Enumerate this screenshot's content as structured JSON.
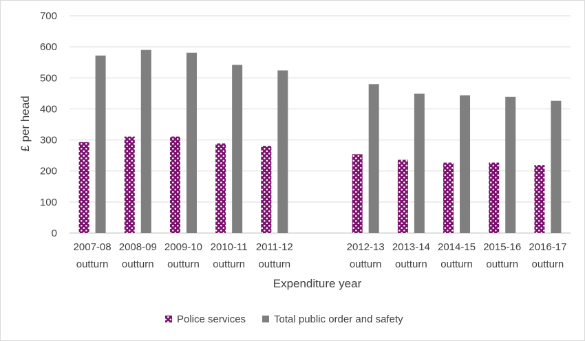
{
  "chart_data": {
    "type": "bar",
    "title": "",
    "xlabel": "Expenditure year",
    "ylabel": "£ per head",
    "ylim": [
      0,
      700
    ],
    "yticks": [
      0,
      100,
      200,
      300,
      400,
      500,
      600,
      700
    ],
    "grid": true,
    "legend_position": "bottom",
    "categories": [
      [
        "2007-08",
        "outturn"
      ],
      [
        "2008-09",
        "outturn"
      ],
      [
        "2009-10",
        "outturn"
      ],
      [
        "2010-11",
        "outturn"
      ],
      [
        "2011-12",
        "outturn"
      ],
      [
        "",
        ""
      ],
      [
        "2012-13",
        "outturn"
      ],
      [
        "2013-14",
        "outturn"
      ],
      [
        "2014-15",
        "outturn"
      ],
      [
        "2015-16",
        "outturn"
      ],
      [
        "2016-17",
        "outturn"
      ]
    ],
    "series": [
      {
        "name": "Police services",
        "color": "#7b0f6e",
        "pattern": "white-dots",
        "values": [
          293,
          311,
          311,
          289,
          281,
          null,
          254,
          236,
          227,
          227,
          219
        ]
      },
      {
        "name": "Total public order and safety",
        "color": "#7f7f7f",
        "pattern": "solid",
        "values": [
          572,
          590,
          581,
          542,
          524,
          null,
          480,
          449,
          444,
          439,
          426
        ]
      }
    ]
  },
  "style": {
    "grid_color": "#d9d9d9",
    "axis_color": "#bfbfbf",
    "text_color": "#404040"
  }
}
